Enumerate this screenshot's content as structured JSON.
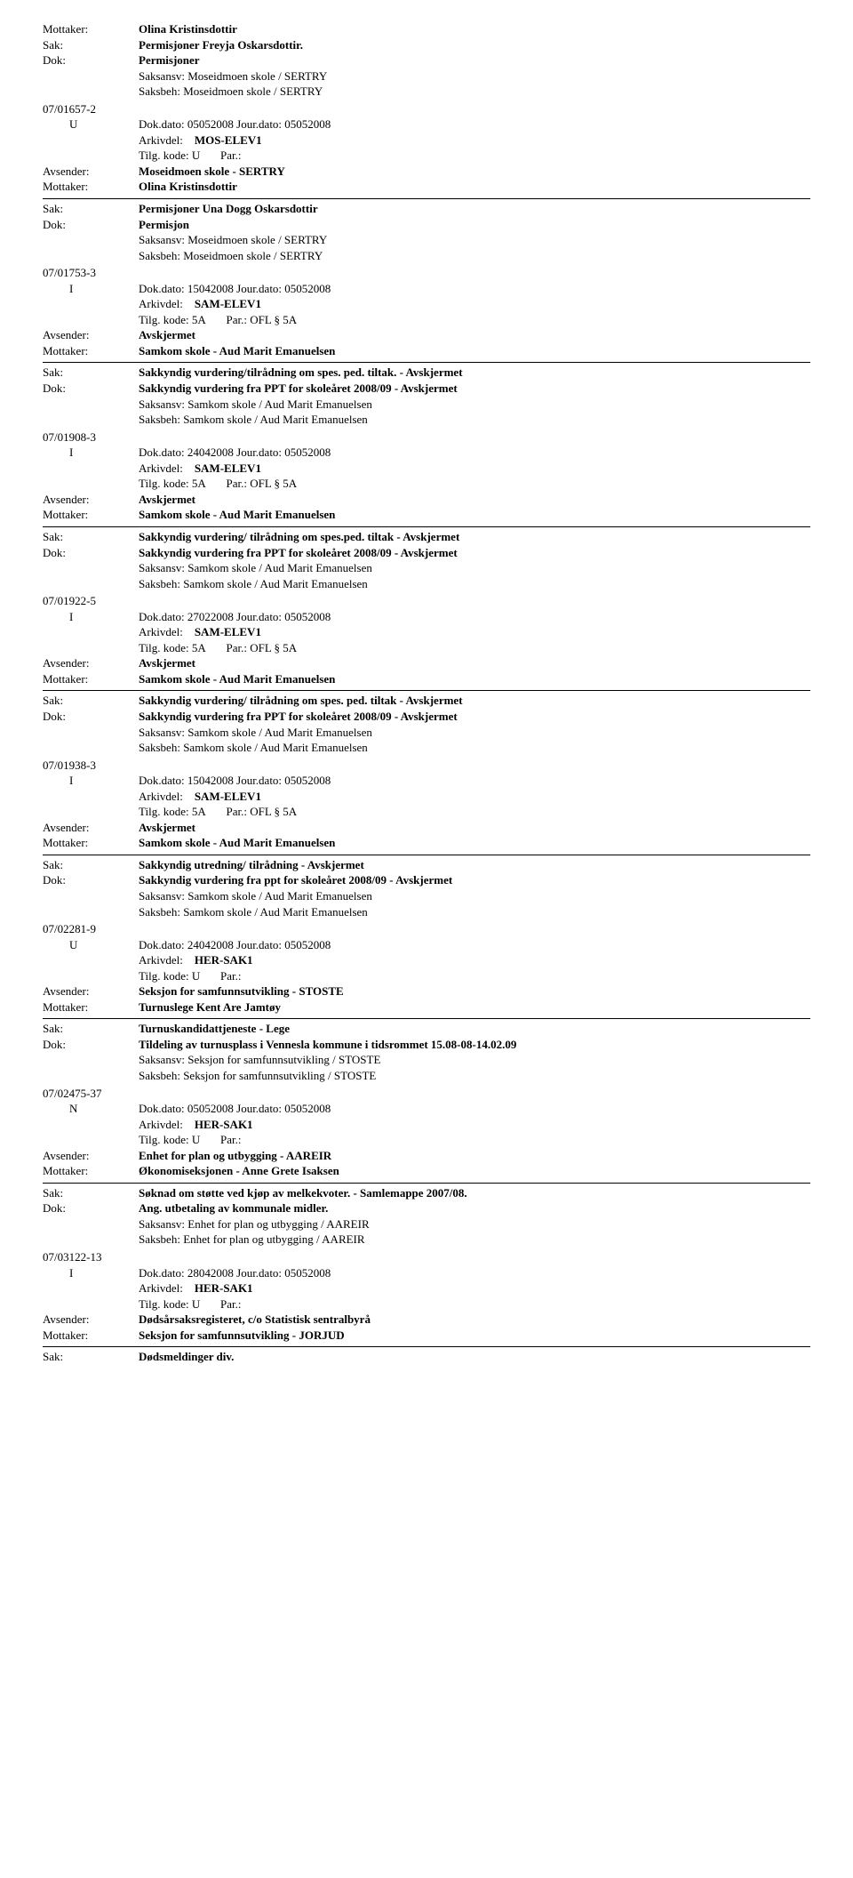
{
  "labels": {
    "mottaker": "Mottaker:",
    "avsender": "Avsender:",
    "sak": "Sak:",
    "dok": "Dok:",
    "saksansv": "Saksansv:",
    "saksbeh": "Saksbeh:",
    "arkivdel": "Arkivdel:",
    "tilgkode": "Tilg. kode:",
    "par": "Par.:"
  },
  "entries": [
    {
      "mottaker_top": "Olina Kristinsdottir",
      "sak": "Permisjoner Freyja Oskarsdottir.",
      "dok": "Permisjoner",
      "saksansv": "Moseidmoen skole / SERTRY",
      "saksbeh": "Moseidmoen skole / SERTRY",
      "case_code": "07/01657-2",
      "case_letter": "U",
      "dokdato": "Dok.dato: 05052008   Jour.dato:   05052008",
      "arkivdel": "MOS-ELEV1",
      "tilgkode": "U",
      "par": "",
      "avsender": "Moseidmoen skole - SERTRY",
      "mottaker": "Olina Kristinsdottir"
    },
    {
      "sak": "Permisjoner Una Dogg Oskarsdottir",
      "dok": "Permisjon",
      "saksansv": "Moseidmoen skole / SERTRY",
      "saksbeh": "Moseidmoen skole / SERTRY",
      "case_code": "07/01753-3",
      "case_letter": "I",
      "dokdato": "Dok.dato: 15042008   Jour.dato:   05052008",
      "arkivdel": "SAM-ELEV1",
      "tilgkode": "5A",
      "par": "OFL § 5A",
      "avsender": "Avskjermet",
      "mottaker": "Samkom skole - Aud Marit Emanuelsen"
    },
    {
      "sak": "Sakkyndig vurdering/tilrådning om spes. ped. tiltak. - Avskjermet",
      "dok": "Sakkyndig vurdering fra PPT for skoleåret 2008/09 - Avskjermet",
      "saksansv": "Samkom skole / Aud Marit Emanuelsen",
      "saksbeh": "Samkom skole / Aud Marit Emanuelsen",
      "case_code": "07/01908-3",
      "case_letter": "I",
      "dokdato": "Dok.dato: 24042008   Jour.dato:   05052008",
      "arkivdel": "SAM-ELEV1",
      "tilgkode": "5A",
      "par": "OFL § 5A",
      "avsender": "Avskjermet",
      "mottaker": "Samkom skole - Aud Marit Emanuelsen"
    },
    {
      "sak": "Sakkyndig vurdering/ tilrådning om spes.ped. tiltak - Avskjermet",
      "dok": "Sakkyndig vurdering fra PPT for skoleåret 2008/09 - Avskjermet",
      "saksansv": "Samkom skole / Aud Marit Emanuelsen",
      "saksbeh": "Samkom skole / Aud Marit Emanuelsen",
      "case_code": "07/01922-5",
      "case_letter": "I",
      "dokdato": "Dok.dato: 27022008   Jour.dato:   05052008",
      "arkivdel": "SAM-ELEV1",
      "tilgkode": "5A",
      "par": "OFL § 5A",
      "avsender": "Avskjermet",
      "mottaker": "Samkom skole - Aud Marit Emanuelsen"
    },
    {
      "sak": "Sakkyndig vurdering/ tilrådning om spes. ped. tiltak - Avskjermet",
      "dok": "Sakkyndig vurdering fra PPT for skoleåret 2008/09 - Avskjermet",
      "saksansv": "Samkom skole / Aud Marit Emanuelsen",
      "saksbeh": "Samkom skole / Aud Marit Emanuelsen",
      "case_code": "07/01938-3",
      "case_letter": "I",
      "dokdato": "Dok.dato: 15042008   Jour.dato:   05052008",
      "arkivdel": "SAM-ELEV1",
      "tilgkode": "5A",
      "par": "OFL § 5A",
      "avsender": "Avskjermet",
      "mottaker": "Samkom skole - Aud Marit Emanuelsen"
    },
    {
      "sak": "Sakkyndig utredning/ tilrådning - Avskjermet",
      "dok": "Sakkyndig vurdering fra ppt for skoleåret 2008/09 - Avskjermet",
      "saksansv": "Samkom skole / Aud Marit Emanuelsen",
      "saksbeh": "Samkom skole / Aud Marit Emanuelsen",
      "case_code": "07/02281-9",
      "case_letter": "U",
      "dokdato": "Dok.dato: 24042008   Jour.dato:   05052008",
      "arkivdel": "HER-SAK1",
      "tilgkode": "U",
      "par": "",
      "avsender": "Seksjon for samfunnsutvikling - STOSTE",
      "mottaker": "Turnuslege Kent Are Jamtøy"
    },
    {
      "sak": "Turnuskandidattjeneste - Lege",
      "dok": "Tildeling av turnusplass i Vennesla kommune i tidsrommet 15.08-08-14.02.09",
      "saksansv": "Seksjon for samfunnsutvikling / STOSTE",
      "saksbeh": "Seksjon for samfunnsutvikling / STOSTE",
      "case_code": "07/02475-37",
      "case_letter": "N",
      "dokdato": "Dok.dato: 05052008   Jour.dato:   05052008",
      "arkivdel": "HER-SAK1",
      "tilgkode": "U",
      "par": "",
      "avsender": "Enhet for plan og utbygging - AAREIR",
      "mottaker": "Økonomiseksjonen - Anne Grete Isaksen"
    },
    {
      "sak": "Søknad om støtte ved kjøp av melkekvoter. - Samlemappe 2007/08.",
      "dok": "Ang. utbetaling av kommunale midler.",
      "saksansv": "Enhet for plan og utbygging / AAREIR",
      "saksbeh": "Enhet for plan og utbygging / AAREIR",
      "case_code": "07/03122-13",
      "case_letter": "I",
      "dokdato": "Dok.dato: 28042008   Jour.dato:   05052008",
      "arkivdel": "HER-SAK1",
      "tilgkode": "U",
      "par": "",
      "avsender": "Dødsårsaksregisteret, c/o Statistisk sentralbyrå",
      "mottaker": "Seksjon for samfunnsutvikling - JORJUD"
    },
    {
      "sak": "Dødsmeldinger div.",
      "last": true
    }
  ]
}
